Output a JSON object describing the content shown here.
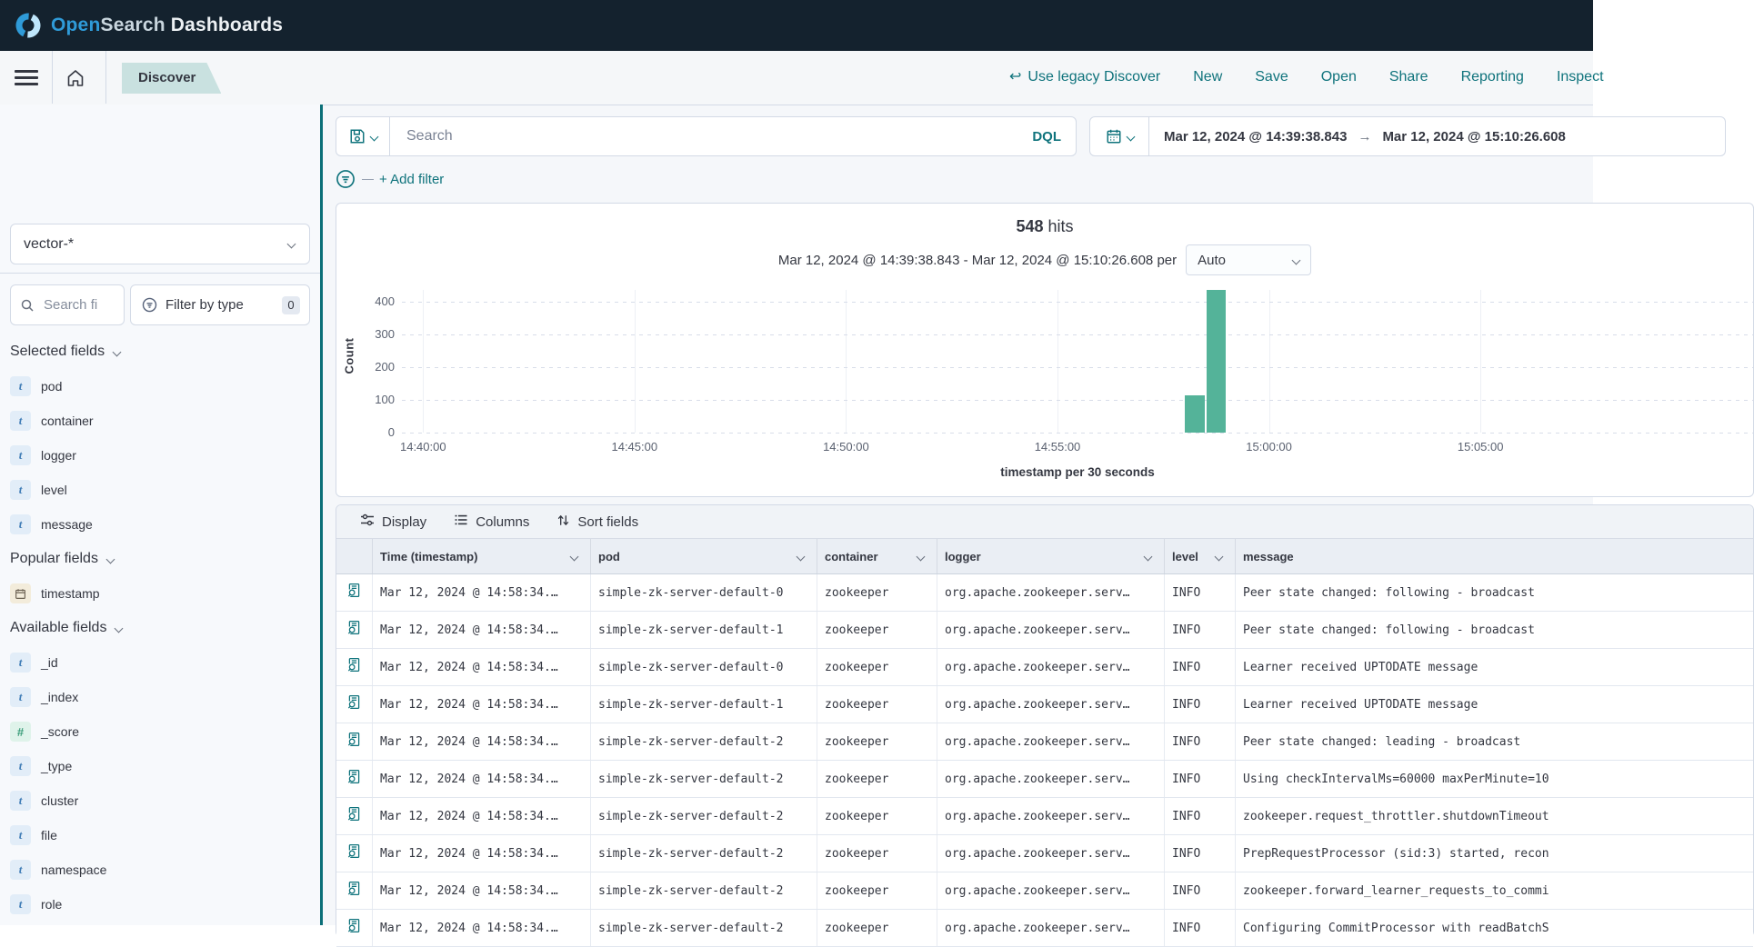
{
  "top_nav": {
    "logo_open": "Open",
    "logo_search": "Search",
    "logo_rest": "Dashboards"
  },
  "menu": {
    "breadcrumb": "Discover",
    "actions": [
      {
        "label": "Use legacy Discover",
        "icon": "undo"
      },
      {
        "label": "New"
      },
      {
        "label": "Save"
      },
      {
        "label": "Open"
      },
      {
        "label": "Share"
      },
      {
        "label": "Reporting"
      },
      {
        "label": "Inspect"
      }
    ]
  },
  "query_bar": {
    "search_placeholder": "Search",
    "language": "DQL",
    "date_start": "Mar 12, 2024 @ 14:39:38.843",
    "date_end": "Mar 12, 2024 @ 15:10:26.608",
    "range_arrow": "→",
    "add_filter_label": "+ Add filter"
  },
  "sidebar": {
    "index_pattern": "vector-*",
    "field_search_placeholder": "Search fi",
    "filter_by_type_label": "Filter by type",
    "filter_count": "0",
    "sections": [
      {
        "label": "Selected fields",
        "fields": [
          {
            "name": "pod",
            "type": "string"
          },
          {
            "name": "container",
            "type": "string"
          },
          {
            "name": "logger",
            "type": "string"
          },
          {
            "name": "level",
            "type": "string"
          },
          {
            "name": "message",
            "type": "string"
          }
        ]
      },
      {
        "label": "Popular fields",
        "fields": [
          {
            "name": "timestamp",
            "type": "date"
          }
        ]
      },
      {
        "label": "Available fields",
        "fields": [
          {
            "name": "_id",
            "type": "string"
          },
          {
            "name": "_index",
            "type": "string"
          },
          {
            "name": "_score",
            "type": "number"
          },
          {
            "name": "_type",
            "type": "string"
          },
          {
            "name": "cluster",
            "type": "string"
          },
          {
            "name": "file",
            "type": "string"
          },
          {
            "name": "namespace",
            "type": "string"
          },
          {
            "name": "role",
            "type": "string"
          }
        ]
      }
    ]
  },
  "results": {
    "hits_value": "548",
    "hits_label": "hits",
    "range_label": "Mar 12, 2024 @ 14:39:38.843 - Mar 12, 2024 @ 15:10:26.608 per",
    "interval_value": "Auto"
  },
  "chart_data": {
    "type": "bar",
    "title": "548 hits",
    "ylabel": "Count",
    "xlabel": "timestamp per 30 seconds",
    "x_axis_start": "14:39:30",
    "x_ticks": [
      "14:40:00",
      "14:45:00",
      "14:50:00",
      "14:55:00",
      "15:00:00",
      "15:05:00"
    ],
    "y_ticks": [
      0,
      100,
      200,
      300,
      400
    ],
    "ylim": [
      0,
      435
    ],
    "bucket_seconds": 30,
    "bars": [
      {
        "time": "14:58:00",
        "count": 113
      },
      {
        "time": "14:58:30",
        "count": 435
      }
    ],
    "bar_color": "#54b399",
    "total_hits": 548
  },
  "table": {
    "toolbar": [
      {
        "label": "Display",
        "icon": "display"
      },
      {
        "label": "Columns",
        "icon": "columns"
      },
      {
        "label": "Sort fields",
        "icon": "sort"
      }
    ],
    "headers": [
      "Time (timestamp)",
      "pod",
      "container",
      "logger",
      "level",
      "message"
    ],
    "rows": [
      {
        "time": "Mar 12, 2024 @ 14:58:34.…",
        "pod": "simple-zk-server-default-0",
        "container": "zookeeper",
        "logger": "org.apache.zookeeper.serv…",
        "level": "INFO",
        "message": "Peer state changed: following - broadcast"
      },
      {
        "time": "Mar 12, 2024 @ 14:58:34.…",
        "pod": "simple-zk-server-default-1",
        "container": "zookeeper",
        "logger": "org.apache.zookeeper.serv…",
        "level": "INFO",
        "message": "Peer state changed: following - broadcast"
      },
      {
        "time": "Mar 12, 2024 @ 14:58:34.…",
        "pod": "simple-zk-server-default-0",
        "container": "zookeeper",
        "logger": "org.apache.zookeeper.serv…",
        "level": "INFO",
        "message": "Learner received UPTODATE message"
      },
      {
        "time": "Mar 12, 2024 @ 14:58:34.…",
        "pod": "simple-zk-server-default-1",
        "container": "zookeeper",
        "logger": "org.apache.zookeeper.serv…",
        "level": "INFO",
        "message": "Learner received UPTODATE message"
      },
      {
        "time": "Mar 12, 2024 @ 14:58:34.…",
        "pod": "simple-zk-server-default-2",
        "container": "zookeeper",
        "logger": "org.apache.zookeeper.serv…",
        "level": "INFO",
        "message": "Peer state changed: leading - broadcast"
      },
      {
        "time": "Mar 12, 2024 @ 14:58:34.…",
        "pod": "simple-zk-server-default-2",
        "container": "zookeeper",
        "logger": "org.apache.zookeeper.serv…",
        "level": "INFO",
        "message": "Using checkIntervalMs=60000 maxPerMinute=10"
      },
      {
        "time": "Mar 12, 2024 @ 14:58:34.…",
        "pod": "simple-zk-server-default-2",
        "container": "zookeeper",
        "logger": "org.apache.zookeeper.serv…",
        "level": "INFO",
        "message": "zookeeper.request_throttler.shutdownTimeout"
      },
      {
        "time": "Mar 12, 2024 @ 14:58:34.…",
        "pod": "simple-zk-server-default-2",
        "container": "zookeeper",
        "logger": "org.apache.zookeeper.serv…",
        "level": "INFO",
        "message": "PrepRequestProcessor (sid:3) started, recon"
      },
      {
        "time": "Mar 12, 2024 @ 14:58:34.…",
        "pod": "simple-zk-server-default-2",
        "container": "zookeeper",
        "logger": "org.apache.zookeeper.serv…",
        "level": "INFO",
        "message": "zookeeper.forward_learner_requests_to_commi"
      },
      {
        "time": "Mar 12, 2024 @ 14:58:34.…",
        "pod": "simple-zk-server-default-2",
        "container": "zookeeper",
        "logger": "org.apache.zookeeper.serv…",
        "level": "INFO",
        "message": "Configuring CommitProcessor with readBatchS"
      }
    ]
  },
  "colors": {
    "accent_teal": "#0f737c",
    "bar_green": "#54b399",
    "header_navy": "#14222e",
    "logo_blue": "#2f9bd8"
  }
}
